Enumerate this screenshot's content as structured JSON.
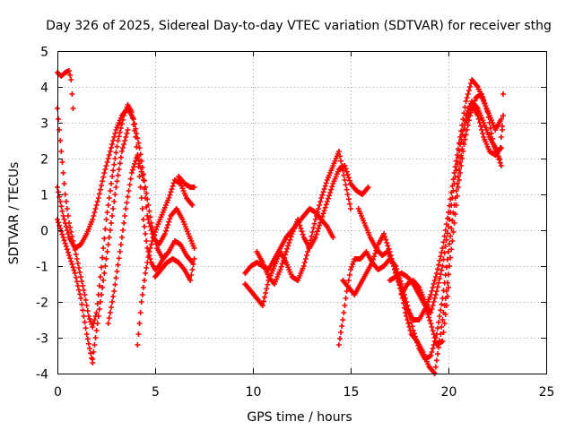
{
  "chart_data": {
    "type": "scatter",
    "title": "Day 326 of 2025, Sidereal Day-to-day VTEC variation (SDTVAR) for receiver sthg",
    "xlabel": "GPS time / hours",
    "ylabel": "SDTVAR / TECUs",
    "xlim": [
      0,
      25
    ],
    "ylim": [
      -4,
      5
    ],
    "xticks": [
      "0",
      "5",
      "10",
      "15",
      "20",
      "25"
    ],
    "yticks": [
      "-4",
      "-3",
      "-2",
      "-1",
      "0",
      "1",
      "2",
      "3",
      "4",
      "5"
    ],
    "grid": true,
    "marker": "plus",
    "color": "#ff0000",
    "series": [
      {
        "name": "s1",
        "x": [
          0,
          0.2,
          0.4,
          0.6,
          0.7,
          0.75,
          0.8
        ],
        "y": [
          4.4,
          4.3,
          4.4,
          4.45,
          4.2,
          3.8,
          3.4
        ]
      },
      {
        "name": "s2",
        "x": [
          0,
          0.2,
          0.4,
          0.6,
          0.8,
          1.0,
          1.2,
          1.4,
          1.6,
          1.8,
          2.0,
          2.2,
          2.5,
          2.8,
          3.1,
          3.4,
          3.6,
          3.8,
          4.0,
          4.2,
          4.4,
          4.6,
          4.8,
          5.0,
          5.2,
          5.5
        ],
        "y": [
          3.4,
          2.2,
          1.0,
          0.2,
          -0.3,
          -0.8,
          -1.3,
          -1.8,
          -2.4,
          -2.7,
          -2.3,
          -1.3,
          0.3,
          1.5,
          2.5,
          3.2,
          3.5,
          3.3,
          2.6,
          1.5,
          0.3,
          -0.5,
          -0.9,
          -1.1,
          -1.0,
          -0.7
        ]
      },
      {
        "name": "s3",
        "x": [
          0,
          0.3,
          0.6,
          0.9,
          1.2,
          1.5,
          1.8,
          2.1,
          2.4,
          2.7,
          3.0,
          3.3,
          3.6,
          3.9,
          4.2,
          4.5,
          4.8,
          5.1,
          5.4,
          5.7,
          6.0,
          6.3,
          6.6,
          6.9
        ],
        "y": [
          1.2,
          0.4,
          -0.2,
          -0.5,
          -0.4,
          -0.1,
          0.3,
          0.9,
          1.6,
          2.2,
          2.8,
          3.2,
          3.4,
          3.1,
          2.3,
          1.2,
          0.2,
          -0.5,
          -0.8,
          -0.6,
          -0.3,
          -0.4,
          -0.7,
          -0.9
        ]
      },
      {
        "name": "s4",
        "x": [
          0,
          0.3,
          0.6,
          0.9,
          1.2,
          1.5,
          1.8
        ],
        "y": [
          0.3,
          -0.2,
          -0.7,
          -1.2,
          -1.9,
          -2.9,
          -3.7
        ]
      },
      {
        "name": "s5",
        "x": [
          1.8,
          2.1,
          2.4,
          2.7,
          3.0,
          3.3,
          3.6
        ],
        "y": [
          -3.6,
          -2.4,
          -1.2,
          0.0,
          1.2,
          2.2,
          2.8
        ]
      },
      {
        "name": "s6",
        "x": [
          2.6,
          2.9,
          3.2,
          3.5,
          3.8,
          4.1,
          4.4,
          4.6,
          4.9,
          5.2,
          5.5,
          5.8,
          6.1,
          6.4,
          6.7,
          7.0
        ],
        "y": [
          -2.6,
          -1.7,
          -0.6,
          0.6,
          1.6,
          2.1,
          1.4,
          0.4,
          -0.2,
          -0.4,
          -0.1,
          0.4,
          0.6,
          0.3,
          -0.1,
          -0.5
        ]
      },
      {
        "name": "s7",
        "x": [
          4.1,
          4.3,
          4.5,
          4.7,
          4.9,
          5.1,
          5.4,
          5.7,
          6.0,
          6.3,
          6.6,
          6.9
        ],
        "y": [
          -3.2,
          -2.0,
          -1.2,
          -0.6,
          -0.2,
          0.1,
          0.5,
          0.9,
          1.4,
          1.3,
          0.9,
          0.7
        ]
      },
      {
        "name": "s8",
        "x": [
          5.0,
          5.3,
          5.6,
          5.9,
          6.2,
          6.5,
          6.8,
          7.0
        ],
        "y": [
          -1.3,
          -1.1,
          -0.9,
          -0.8,
          -0.9,
          -1.1,
          -1.4,
          -0.8
        ]
      },
      {
        "name": "s9",
        "x": [
          6.2,
          6.5,
          6.8,
          7.0
        ],
        "y": [
          1.5,
          1.3,
          1.2,
          1.2
        ]
      },
      {
        "name": "s10",
        "x": [
          9.6,
          9.9,
          10.2,
          10.5,
          10.8,
          11.1,
          11.4,
          11.7,
          12.0,
          12.3,
          12.6,
          12.9,
          13.2,
          13.5,
          13.8,
          14.1
        ],
        "y": [
          -1.2,
          -1.0,
          -0.9,
          -1.0,
          -1.1,
          -0.8,
          -0.5,
          -0.2,
          0.0,
          0.2,
          0.4,
          0.6,
          0.5,
          0.3,
          0.1,
          -0.2
        ]
      },
      {
        "name": "s11",
        "x": [
          9.6,
          9.9,
          10.2,
          10.5,
          10.8,
          11.1,
          11.4,
          11.7,
          12.0,
          12.3,
          12.6,
          12.9,
          13.2,
          13.5,
          13.8,
          14.1,
          14.4,
          14.7,
          15.0
        ],
        "y": [
          -1.5,
          -1.7,
          -1.9,
          -2.1,
          -1.4,
          -1.0,
          -0.6,
          -0.9,
          -1.3,
          -1.4,
          -1.0,
          -0.4,
          0.3,
          0.9,
          1.4,
          1.8,
          2.2,
          1.4,
          0.6
        ]
      },
      {
        "name": "s12",
        "x": [
          10.2,
          10.5,
          10.8,
          11.1,
          11.4,
          11.7,
          12.0,
          12.3,
          12.6,
          12.9,
          13.2,
          13.5,
          13.8,
          14.1,
          14.4,
          14.7,
          15.0,
          15.3,
          15.6,
          15.9
        ],
        "y": [
          -0.6,
          -0.9,
          -1.3,
          -1.5,
          -1.1,
          -0.6,
          -0.1,
          0.3,
          -0.2,
          -0.5,
          -0.2,
          0.3,
          0.8,
          1.3,
          1.7,
          1.8,
          1.3,
          1.1,
          1.0,
          1.2
        ]
      },
      {
        "name": "s13",
        "x": [
          14.4,
          14.6,
          14.8,
          15.0,
          15.2,
          15.5,
          15.8,
          16.1,
          16.4,
          16.7,
          17.0,
          17.3,
          17.6,
          17.9,
          18.2,
          18.5,
          18.8,
          19.1,
          19.4,
          19.7,
          20.0,
          20.3,
          20.6,
          20.9,
          21.2,
          21.5,
          21.8,
          22.1,
          22.4,
          22.7
        ],
        "y": [
          -3.2,
          -2.5,
          -1.7,
          -1.1,
          -0.8,
          -0.8,
          -0.6,
          -0.9,
          -1.1,
          -1.0,
          -0.8,
          -1.0,
          -1.5,
          -2.1,
          -2.8,
          -3.3,
          -3.6,
          -3.5,
          -2.9,
          -1.9,
          -0.6,
          0.7,
          1.9,
          3.0,
          3.5,
          3.2,
          2.6,
          2.2,
          2.1,
          2.3
        ]
      },
      {
        "name": "s14",
        "x": [
          14.6,
          14.9,
          15.2,
          15.5,
          15.8,
          16.1,
          16.4,
          16.7,
          17.0,
          17.3,
          17.6,
          17.9,
          18.2,
          18.5,
          18.8,
          19.1,
          19.4,
          19.7,
          20.0,
          20.3,
          20.6,
          20.9,
          21.2,
          21.5,
          21.8,
          22.1,
          22.4,
          22.7
        ],
        "y": [
          -1.4,
          -1.6,
          -1.8,
          -1.5,
          -1.2,
          -0.9,
          -0.4,
          -0.1,
          -0.6,
          -1.2,
          -1.7,
          -2.2,
          -2.5,
          -2.5,
          -2.2,
          -1.8,
          -1.2,
          -0.5,
          0.5,
          1.6,
          2.6,
          3.6,
          4.2,
          4.0,
          3.6,
          3.2,
          2.8,
          3.1
        ]
      },
      {
        "name": "s15",
        "x": [
          15.4,
          15.7,
          16.0,
          16.3,
          16.6,
          16.9,
          17.2,
          17.5,
          17.8,
          18.1,
          18.4,
          18.7,
          19.0,
          19.3,
          19.6,
          19.9,
          20.2,
          20.5,
          20.8,
          21.1,
          21.4,
          21.7,
          22.0,
          22.3,
          22.6,
          22.8
        ],
        "y": [
          0.6,
          0.2,
          -0.2,
          -0.5,
          -0.7,
          -0.6,
          -1.0,
          -1.5,
          -2.3,
          -2.9,
          -3.1,
          -3.4,
          -3.8,
          -4.0,
          -2.9,
          -1.7,
          -0.3,
          1.2,
          2.4,
          3.2,
          3.7,
          3.8,
          3.3,
          2.4,
          2.0,
          3.2
        ]
      },
      {
        "name": "s16",
        "x": [
          17.6,
          17.9,
          18.2,
          18.5,
          18.8,
          19.1,
          19.4,
          19.7,
          20.0,
          20.3,
          20.6,
          20.9,
          21.2,
          21.5,
          21.8,
          22.1,
          22.4,
          22.7,
          22.8
        ],
        "y": [
          -1.8,
          -1.5,
          -1.4,
          -1.6,
          -2.0,
          -2.3,
          -1.7,
          -1.0,
          0.1,
          1.3,
          2.4,
          3.2,
          3.6,
          3.4,
          3.0,
          2.6,
          2.3,
          1.8,
          3.8
        ]
      },
      {
        "name": "s17",
        "x": [
          17.0,
          17.3,
          17.6,
          17.9,
          18.2,
          18.5,
          18.8,
          19.1,
          19.4,
          19.7,
          20.0
        ],
        "y": [
          -1.4,
          -1.3,
          -1.2,
          -1.3,
          -1.5,
          -1.8,
          -2.1,
          -2.6,
          -3.2,
          -3.1,
          -1.6
        ]
      }
    ]
  }
}
